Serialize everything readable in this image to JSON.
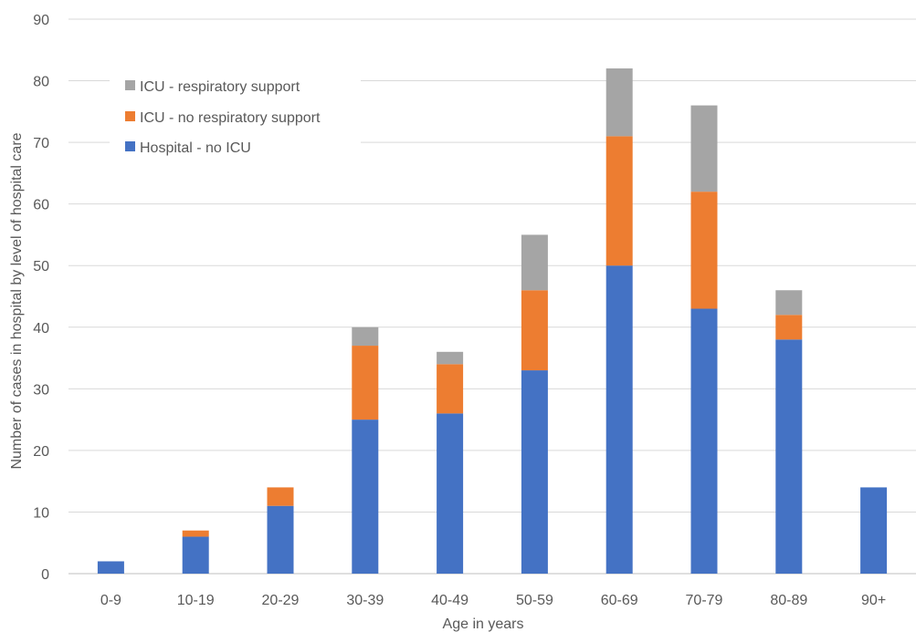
{
  "chart_data": {
    "type": "bar",
    "stacked": true,
    "title": "",
    "xlabel": "Age in years",
    "ylabel": "Number of cases in hospital by level of hospital care",
    "ylim": [
      0,
      90
    ],
    "yticks": [
      0,
      10,
      20,
      30,
      40,
      50,
      60,
      70,
      80,
      90
    ],
    "grid": true,
    "legend_position": "top-left",
    "categories": [
      "0-9",
      "10-19",
      "20-29",
      "30-39",
      "40-49",
      "50-59",
      "60-69",
      "70-79",
      "80-89",
      "90+"
    ],
    "series": [
      {
        "name": "Hospital - no ICU",
        "color": "#4472C4",
        "values": [
          2,
          6,
          11,
          25,
          26,
          33,
          50,
          43,
          38,
          14
        ]
      },
      {
        "name": "ICU - no respiratory support",
        "color": "#ED7D31",
        "values": [
          0,
          1,
          3,
          12,
          8,
          13,
          21,
          19,
          4,
          0
        ]
      },
      {
        "name": "ICU - respiratory support",
        "color": "#A5A5A5",
        "values": [
          0,
          0,
          0,
          3,
          2,
          9,
          11,
          14,
          4,
          0
        ]
      }
    ],
    "legend_order": [
      2,
      1,
      0
    ]
  }
}
